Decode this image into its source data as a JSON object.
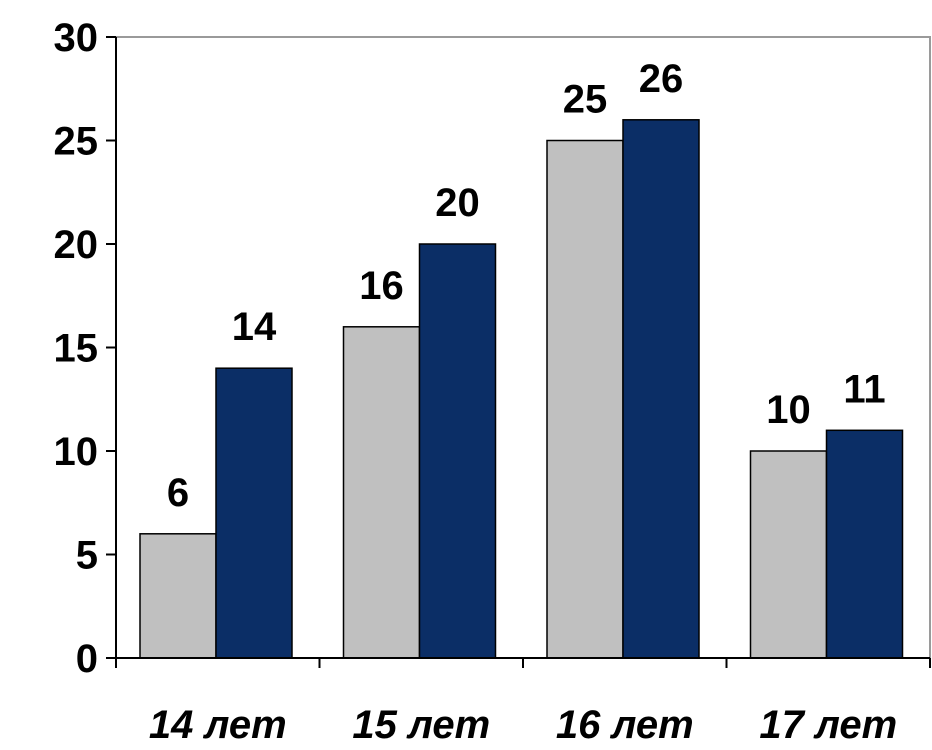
{
  "chart_data": {
    "type": "bar",
    "categories": [
      "14 лет",
      "15 лет",
      "16 лет",
      "17 лет"
    ],
    "series": [
      {
        "values": [
          6,
          16,
          25,
          10
        ],
        "color": "#c0c0c0"
      },
      {
        "values": [
          14,
          20,
          26,
          11
        ],
        "color": "#0b2e66"
      }
    ],
    "ylim": [
      0,
      30
    ],
    "yticks": [
      0,
      5,
      10,
      15,
      20,
      25,
      30
    ],
    "grid": false,
    "data_labels": true,
    "title": "",
    "xlabel": "",
    "ylabel": ""
  }
}
